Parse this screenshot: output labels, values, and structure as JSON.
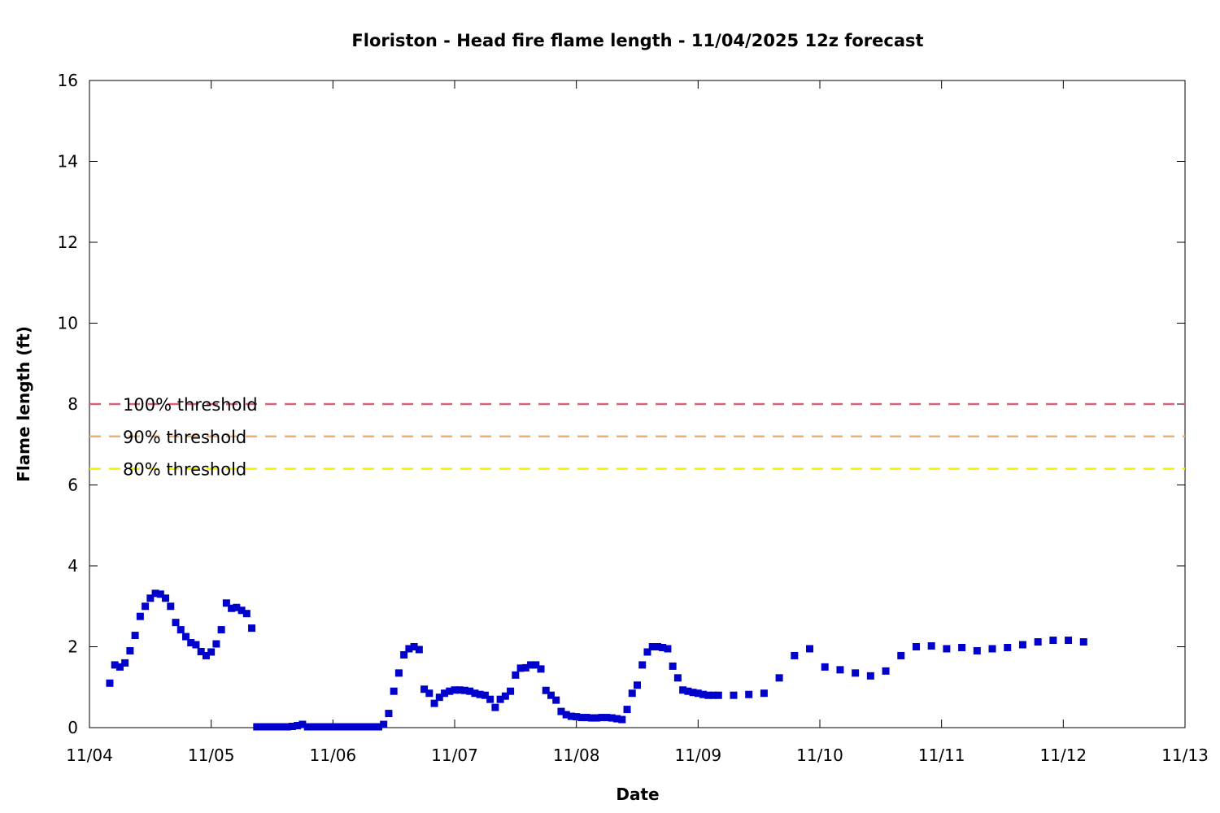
{
  "chart_data": {
    "type": "scatter",
    "title": "Floriston - Head fire flame length - 11/04/2025 12z forecast",
    "xlabel": "Date",
    "ylabel": "Flame length (ft)",
    "x_ticks": [
      "11/04",
      "11/05",
      "11/06",
      "11/07",
      "11/08",
      "11/09",
      "11/10",
      "11/11",
      "11/12",
      "11/13"
    ],
    "y_ticks": [
      "0",
      "2",
      "4",
      "6",
      "8",
      "10",
      "12",
      "14",
      "16"
    ],
    "xlim": [
      "11/04",
      "11/13"
    ],
    "ylim": [
      0,
      16
    ],
    "grid": false,
    "colors": {
      "series": "#0000cc",
      "threshold_100": "#d9607a",
      "threshold_90": "#f0b070",
      "threshold_80": "#f0f000"
    },
    "thresholds": [
      {
        "label": "100% threshold",
        "value": 8.0
      },
      {
        "label": "90% threshold",
        "value": 7.2
      },
      {
        "label": "80% threshold",
        "value": 6.4
      }
    ],
    "series": [
      {
        "x": [
          "11/04 04:00",
          "11/04 05:00",
          "11/04 06:00",
          "11/04 07:00",
          "11/04 08:00",
          "11/04 09:00",
          "11/04 10:00",
          "11/04 11:00",
          "11/04 12:00",
          "11/04 13:00",
          "11/04 14:00",
          "11/04 15:00",
          "11/04 16:00",
          "11/04 17:00",
          "11/04 18:00",
          "11/04 19:00",
          "11/04 20:00",
          "11/04 21:00",
          "11/04 22:00",
          "11/04 23:00",
          "11/05 00:00",
          "11/05 01:00",
          "11/05 02:00",
          "11/05 03:00",
          "11/05 04:00",
          "11/05 05:00",
          "11/05 06:00",
          "11/05 07:00",
          "11/05 08:00",
          "11/05 09:00",
          "11/05 10:00",
          "11/05 11:00",
          "11/05 12:00",
          "11/05 13:00",
          "11/05 14:00",
          "11/05 15:00",
          "11/05 16:00",
          "11/05 17:00",
          "11/05 18:00",
          "11/05 19:00",
          "11/05 20:00",
          "11/05 21:00",
          "11/05 22:00",
          "11/05 23:00",
          "11/06 00:00",
          "11/06 01:00",
          "11/06 02:00",
          "11/06 03:00",
          "11/06 04:00",
          "11/06 05:00",
          "11/06 06:00",
          "11/06 07:00",
          "11/06 08:00",
          "11/06 09:00",
          "11/06 10:00",
          "11/06 11:00",
          "11/06 12:00",
          "11/06 13:00",
          "11/06 14:00",
          "11/06 15:00",
          "11/06 16:00",
          "11/06 17:00",
          "11/06 18:00",
          "11/06 19:00",
          "11/06 20:00",
          "11/06 21:00",
          "11/06 22:00",
          "11/06 23:00",
          "11/07 00:00",
          "11/07 01:00",
          "11/07 02:00",
          "11/07 03:00",
          "11/07 04:00",
          "11/07 05:00",
          "11/07 06:00",
          "11/07 07:00",
          "11/07 08:00",
          "11/07 09:00",
          "11/07 10:00",
          "11/07 11:00",
          "11/07 12:00",
          "11/07 13:00",
          "11/07 14:00",
          "11/07 15:00",
          "11/07 16:00",
          "11/07 17:00",
          "11/07 18:00",
          "11/07 19:00",
          "11/07 20:00",
          "11/07 21:00",
          "11/07 22:00",
          "11/07 23:00",
          "11/08 00:00",
          "11/08 01:00",
          "11/08 02:00",
          "11/08 03:00",
          "11/08 04:00",
          "11/08 05:00",
          "11/08 06:00",
          "11/08 07:00",
          "11/08 08:00",
          "11/08 09:00",
          "11/08 10:00",
          "11/08 11:00",
          "11/08 12:00",
          "11/08 13:00",
          "11/08 14:00",
          "11/08 15:00",
          "11/08 16:00",
          "11/08 17:00",
          "11/08 18:00",
          "11/08 19:00",
          "11/08 20:00",
          "11/08 21:00",
          "11/08 22:00",
          "11/08 23:00",
          "11/09 00:00",
          "11/09 01:00",
          "11/09 02:00",
          "11/09 03:00",
          "11/09 04:00",
          "11/09 07:00",
          "11/09 10:00",
          "11/09 13:00",
          "11/09 16:00",
          "11/09 19:00",
          "11/09 22:00",
          "11/10 01:00",
          "11/10 04:00",
          "11/10 07:00",
          "11/10 10:00",
          "11/10 13:00",
          "11/10 16:00",
          "11/10 19:00",
          "11/10 22:00",
          "11/11 01:00",
          "11/11 04:00",
          "11/11 07:00",
          "11/11 10:00",
          "11/11 13:00",
          "11/11 16:00",
          "11/11 19:00",
          "11/11 22:00",
          "11/12 01:00",
          "11/12 04:00"
        ],
        "y": [
          1.1,
          1.55,
          1.5,
          1.6,
          1.9,
          2.28,
          2.75,
          3.0,
          3.2,
          3.32,
          3.3,
          3.2,
          3.0,
          2.6,
          2.42,
          2.25,
          2.1,
          2.05,
          1.88,
          1.78,
          1.87,
          2.07,
          2.42,
          3.08,
          2.95,
          2.97,
          2.9,
          2.82,
          2.46,
          0.02,
          0.02,
          0.02,
          0.02,
          0.02,
          0.02,
          0.02,
          0.03,
          0.05,
          0.08,
          0.02,
          0.02,
          0.02,
          0.02,
          0.02,
          0.02,
          0.02,
          0.02,
          0.02,
          0.02,
          0.02,
          0.02,
          0.02,
          0.02,
          0.02,
          0.08,
          0.35,
          0.9,
          1.35,
          1.8,
          1.95,
          2.0,
          1.93,
          0.95,
          0.85,
          0.6,
          0.75,
          0.85,
          0.9,
          0.93,
          0.93,
          0.92,
          0.9,
          0.85,
          0.82,
          0.8,
          0.7,
          0.5,
          0.7,
          0.78,
          0.9,
          1.3,
          1.47,
          1.48,
          1.55,
          1.55,
          1.45,
          0.92,
          0.8,
          0.68,
          0.4,
          0.32,
          0.28,
          0.27,
          0.25,
          0.25,
          0.24,
          0.24,
          0.25,
          0.25,
          0.24,
          0.22,
          0.2,
          0.45,
          0.85,
          1.05,
          1.55,
          1.87,
          2.0,
          2.0,
          1.98,
          1.95,
          1.52,
          1.23,
          0.93,
          0.9,
          0.87,
          0.85,
          0.82,
          0.8,
          0.8,
          0.8,
          0.8,
          0.82,
          0.85,
          1.23,
          1.78,
          1.95,
          1.5,
          1.43,
          1.35,
          1.28,
          1.4,
          1.78,
          2.0,
          2.02,
          1.95,
          1.98,
          1.9,
          1.95,
          1.98,
          2.05,
          2.12,
          2.16,
          2.16,
          2.12
        ]
      }
    ]
  }
}
